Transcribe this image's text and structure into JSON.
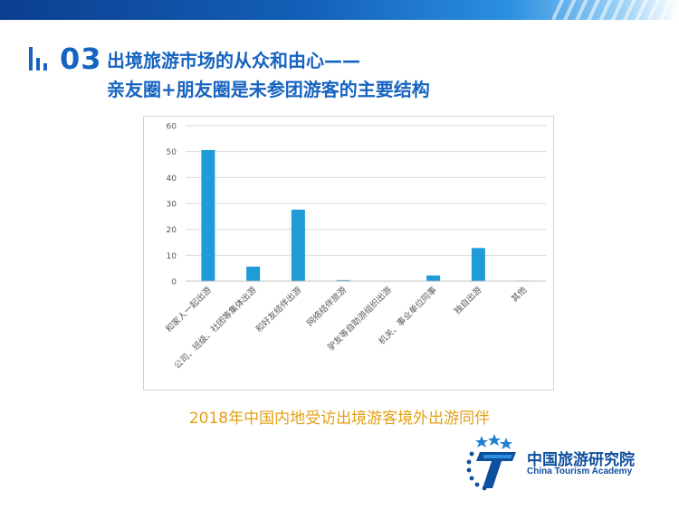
{
  "slide": {
    "section_number": "03",
    "title_line1": "出境旅游市场的从众和由心——",
    "title_line2": "亲友圈+朋友圈是未参团游客的主要结构",
    "caption": "2018年中国内地受访出境游客境外出游同伴"
  },
  "logo": {
    "name_cn": "中国旅游研究院",
    "name_en": "China Tourism Academy"
  },
  "colors": {
    "accent": "#1764c0",
    "bar": "#1f9bd7",
    "caption": "#e3a016"
  },
  "chart_data": {
    "type": "bar",
    "categories": [
      "和家人一起出游",
      "公司、班级、社团等集体出游",
      "和好友结伴出游",
      "网络结伴旅游",
      "驴友等自助游组织出游",
      "机关、事业单位同事",
      "独自出游",
      "其他"
    ],
    "values": [
      50.6,
      5.6,
      27.6,
      0.4,
      0,
      2.2,
      12.8,
      0.2
    ],
    "y_ticks": [
      "0",
      "10",
      "20",
      "30",
      "40",
      "50",
      "60"
    ],
    "ylim": [
      0,
      60
    ],
    "grid": true
  }
}
